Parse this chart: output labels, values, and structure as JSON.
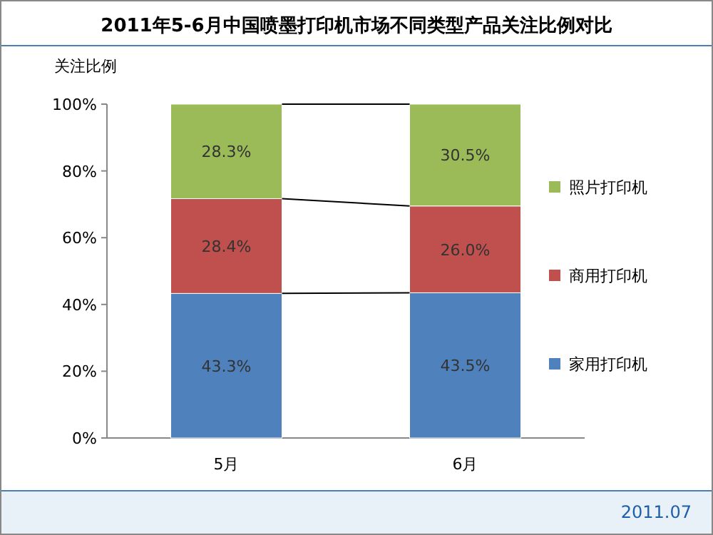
{
  "chart_data": {
    "type": "bar",
    "stacked": true,
    "title": "2011年5-6月中国喷墨打印机市场不同类型产品关注比例对比",
    "ylabel": "关注比例",
    "categories": [
      "5月",
      "6月"
    ],
    "series": [
      {
        "name": "家用打印机",
        "color": "#4f81bd",
        "values": [
          43.3,
          43.5
        ],
        "value_labels": [
          "43.3%",
          "43.5%"
        ]
      },
      {
        "name": "商用打印机",
        "color": "#c0504d",
        "values": [
          28.4,
          26.0
        ],
        "value_labels": [
          "28.4%",
          "26.0%"
        ]
      },
      {
        "name": "照片打印机",
        "color": "#9bbb59",
        "values": [
          28.3,
          30.5
        ],
        "value_labels": [
          "28.3%",
          "30.5%"
        ]
      }
    ],
    "ylim": [
      0,
      100
    ],
    "yticks": [
      {
        "value": 0,
        "label": "0%"
      },
      {
        "value": 20,
        "label": "20%"
      },
      {
        "value": 40,
        "label": "40%"
      },
      {
        "value": 60,
        "label": "60%"
      },
      {
        "value": 80,
        "label": "80%"
      },
      {
        "value": 100,
        "label": "100%"
      }
    ],
    "legend": "right",
    "annotations": [
      "2011.07"
    ]
  }
}
